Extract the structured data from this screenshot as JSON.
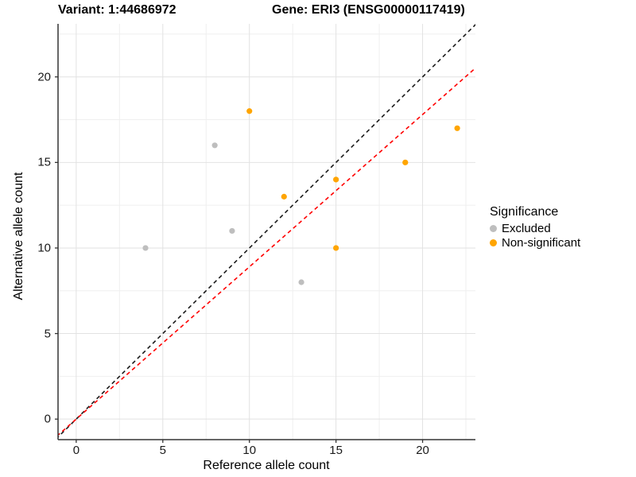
{
  "chart_data": {
    "type": "scatter",
    "titles": {
      "variant": "Variant: 1:44686972",
      "gene": "Gene: ERI3 (ENSG00000117419)"
    },
    "xlabel": "Reference allele count",
    "ylabel": "Alternative allele count",
    "xlim": [
      -1.05,
      23.05
    ],
    "ylim": [
      -1.2,
      23.1
    ],
    "x_ticks": [
      0,
      5,
      10,
      15,
      20
    ],
    "y_ticks": [
      0,
      5,
      10,
      15,
      20
    ],
    "x_minor_ticks": [
      2.5,
      7.5,
      12.5,
      17.5,
      22.5
    ],
    "y_minor_ticks": [
      2.5,
      7.5,
      12.5,
      17.5,
      22.5
    ],
    "grid": true,
    "series": [
      {
        "name": "Excluded",
        "color": "#bebebe",
        "points": [
          [
            4,
            10
          ],
          [
            8,
            16
          ],
          [
            9,
            11
          ],
          [
            13,
            8
          ]
        ]
      },
      {
        "name": "Non-significant",
        "color": "#ffa500",
        "points": [
          [
            10,
            18
          ],
          [
            12,
            13
          ],
          [
            15,
            14
          ],
          [
            15,
            10
          ],
          [
            19,
            15
          ],
          [
            22,
            17
          ]
        ]
      }
    ],
    "lines": [
      {
        "name": "identity-line",
        "slope": 1.0,
        "intercept": 0,
        "color": "#1a1a1a",
        "dash": "5 4"
      },
      {
        "name": "ratio-line",
        "slope": 0.89,
        "intercept": 0,
        "color": "#ff0000",
        "dash": "5 4"
      }
    ],
    "legend": {
      "position": "right",
      "title": "Significance",
      "items": [
        {
          "label": "Excluded",
          "color": "#bebebe"
        },
        {
          "label": "Non-significant",
          "color": "#ffa500"
        }
      ]
    }
  }
}
